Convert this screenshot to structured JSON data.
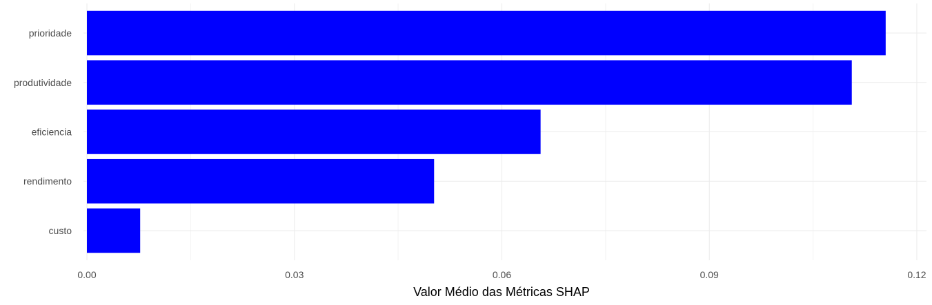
{
  "chart_data": {
    "type": "bar",
    "orientation": "horizontal",
    "categories": [
      "prioridade",
      "produtividade",
      "eficiencia",
      "rendimento",
      "custo"
    ],
    "values": [
      0.1155,
      0.1106,
      0.0656,
      0.0502,
      0.0077
    ],
    "title": "",
    "xlabel": "Valor Médio das Métricas SHAP",
    "ylabel": "",
    "xlim": [
      -0.0005,
      0.1214
    ],
    "xticks": [
      0.0,
      0.03,
      0.06,
      0.09,
      0.12
    ],
    "xtick_labels": [
      "0.00",
      "0.03",
      "0.06",
      "0.09",
      "0.12"
    ],
    "bar_color": "#0000ff",
    "grid": true,
    "legend": "none"
  }
}
